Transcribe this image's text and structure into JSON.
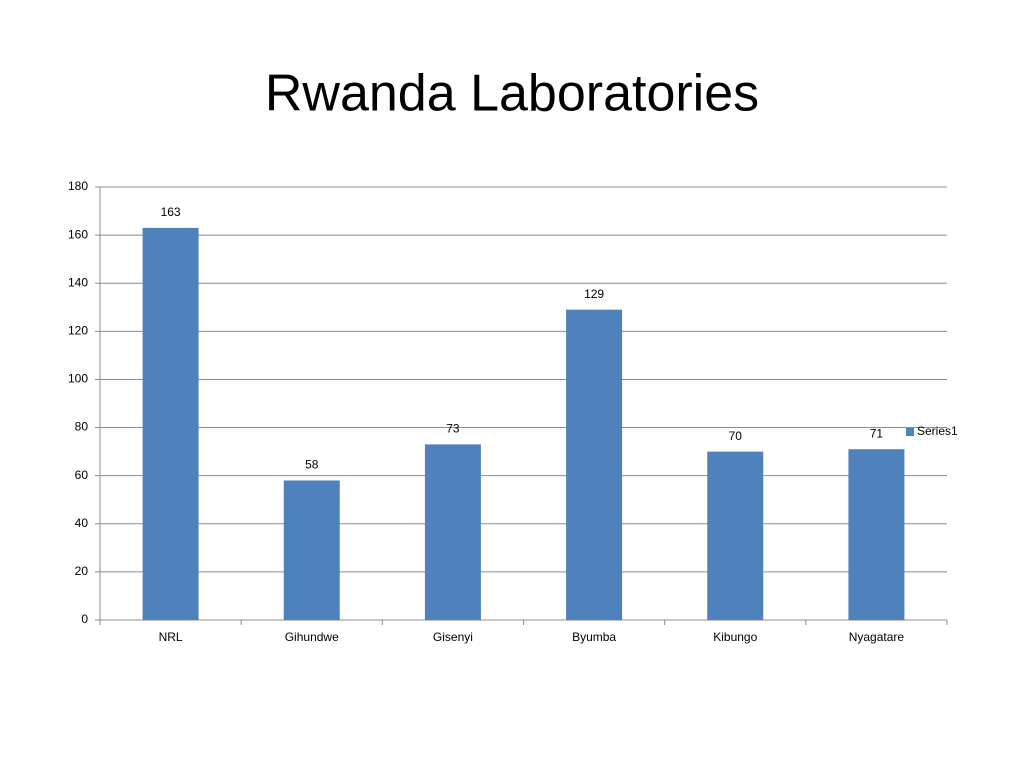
{
  "chart_data": {
    "type": "bar",
    "title": "Rwanda Laboratories",
    "categories": [
      "NRL",
      "Gihundwe",
      "Gisenyi",
      "Byumba",
      "Kibungo",
      "Nyagatare"
    ],
    "series": [
      {
        "name": "Series1",
        "color": "#4f81bd",
        "values": [
          163,
          58,
          73,
          129,
          70,
          71
        ]
      }
    ],
    "ylim": [
      0,
      180
    ],
    "yticks": [
      0,
      20,
      40,
      60,
      80,
      100,
      120,
      140,
      160,
      180
    ],
    "grid": true,
    "legend": "right"
  }
}
